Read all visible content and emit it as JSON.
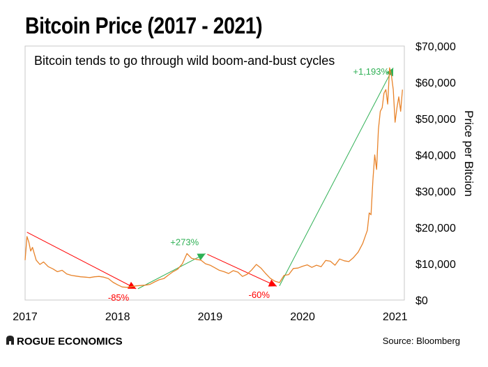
{
  "title": "Bitcoin Price (2017 - 2021)",
  "logo_text": "ROGUE ECONOMICS",
  "source": "Source: Bloomberg",
  "colors": {
    "price_line": "#e8832a",
    "down_arrow": "#ff0000",
    "up_arrow": "#2fb055",
    "frame": "#c8c8c8"
  },
  "chart_data": {
    "type": "line",
    "title": "Bitcoin Price (2017 - 2021)",
    "subtitle": "Bitcoin tends to go through wild boom-and-bust cycles",
    "xlabel": "",
    "ylabel": "Price per Bitcion",
    "xlim": [
      2017.0,
      2021.1
    ],
    "ylim": [
      0,
      70000
    ],
    "x_ticks": [
      2017,
      2018,
      2019,
      2020,
      2021
    ],
    "x_tick_labels": [
      "2017",
      "2018",
      "2019",
      "2020",
      "2021"
    ],
    "y_ticks": [
      0,
      10000,
      20000,
      30000,
      40000,
      50000,
      60000,
      70000
    ],
    "y_tick_labels": [
      "$0",
      "$10,000",
      "$20,000",
      "$30,000",
      "$40,000",
      "$50,000",
      "$60,000",
      "$70,000"
    ],
    "y_axis_side": "right",
    "grid": false,
    "series": [
      {
        "x": [
          2017.0,
          2017.02,
          2017.04,
          2017.06,
          2017.08,
          2017.12,
          2017.16,
          2017.2,
          2017.25,
          2017.3,
          2017.35,
          2017.4,
          2017.45,
          2017.5,
          2017.55,
          2017.6,
          2017.65,
          2017.7,
          2017.75,
          2017.8,
          2017.85,
          2017.9,
          2017.95,
          2018.0,
          2018.05,
          2018.1,
          2018.15,
          2018.2,
          2018.25,
          2018.3,
          2018.35,
          2018.4,
          2018.45,
          2018.5,
          2018.55,
          2018.6,
          2018.65,
          2018.7,
          2018.75,
          2018.8,
          2018.85,
          2018.9,
          2018.95,
          2019.0,
          2019.05,
          2019.1,
          2019.15,
          2019.2,
          2019.25,
          2019.3,
          2019.35,
          2019.4,
          2019.45,
          2019.5,
          2019.55,
          2019.6,
          2019.65,
          2019.7,
          2019.75,
          2019.8,
          2019.85,
          2019.9,
          2019.95,
          2020.0,
          2020.05,
          2020.1,
          2020.15,
          2020.2,
          2020.25,
          2020.3,
          2020.35,
          2020.4,
          2020.45,
          2020.5,
          2020.55,
          2020.6,
          2020.65,
          2020.7,
          2020.72,
          2020.74,
          2020.76,
          2020.78,
          2020.8,
          2020.82,
          2020.84,
          2020.86,
          2020.88,
          2020.9,
          2020.92,
          2020.94,
          2020.96,
          2020.98,
          2021.0,
          2021.02,
          2021.04,
          2021.06,
          2021.08
        ],
        "y": [
          11000,
          17500,
          16000,
          13500,
          14500,
          11000,
          9800,
          10500,
          9200,
          8600,
          7800,
          8200,
          7200,
          6800,
          6600,
          6400,
          6300,
          6200,
          6400,
          6500,
          6300,
          5900,
          4900,
          4200,
          3600,
          3500,
          3700,
          3900,
          4000,
          4100,
          4300,
          5000,
          5600,
          5900,
          6900,
          7800,
          8500,
          10000,
          12800,
          11500,
          11200,
          11000,
          10000,
          9600,
          8900,
          8200,
          7800,
          7300,
          8100,
          7700,
          6500,
          7100,
          8300,
          9800,
          8800,
          7300,
          6000,
          5200,
          4800,
          6800,
          7000,
          8700,
          8800,
          9300,
          9700,
          9000,
          9600,
          9200,
          10900,
          10700,
          9600,
          11300,
          10800,
          10600,
          11700,
          13200,
          15600,
          19200,
          24000,
          23500,
          33000,
          40000,
          36000,
          47000,
          52000,
          53000,
          57000,
          58000,
          54000,
          64000,
          62000,
          58000,
          49000,
          53000,
          56000,
          52000,
          58000
        ]
      }
    ],
    "annotations": [
      {
        "text": "-85%",
        "from": [
          2017.02,
          18700
        ],
        "to": [
          2018.2,
          3100
        ],
        "direction": "down"
      },
      {
        "text": "+273%",
        "from": [
          2018.22,
          3100
        ],
        "to": [
          2018.95,
          12800
        ],
        "direction": "up"
      },
      {
        "text": "-60%",
        "from": [
          2018.97,
          12600
        ],
        "to": [
          2019.72,
          3800
        ],
        "direction": "down"
      },
      {
        "text": "+1,193%",
        "from": [
          2019.75,
          3900
        ],
        "to": [
          2020.98,
          64000
        ],
        "direction": "up"
      }
    ]
  }
}
